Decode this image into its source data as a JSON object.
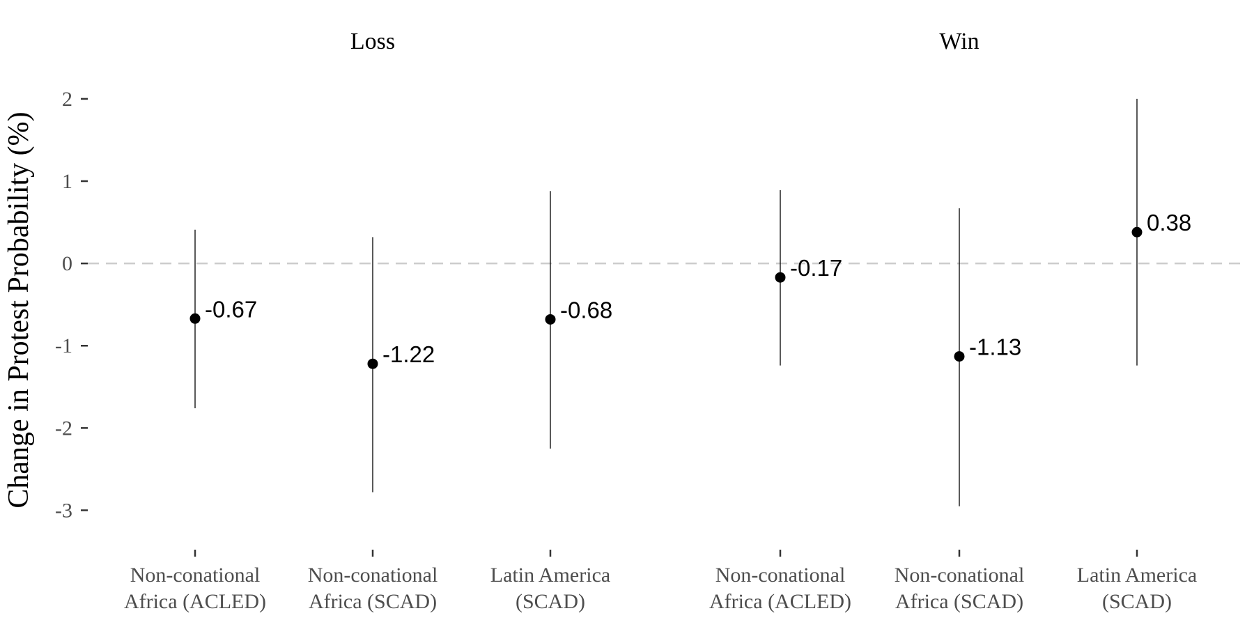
{
  "chart_data": {
    "type": "scatter",
    "ylabel": "Change in Protest Probability (%)",
    "xlabel": "",
    "ylim": [
      -3.25,
      2.05
    ],
    "yticks": [
      2,
      1,
      0,
      -1,
      -2,
      -3
    ],
    "yticks_text": [
      "2",
      "1",
      "0",
      "-1",
      "-2",
      "-3"
    ],
    "reference_line": {
      "y": 0,
      "style": "dashed",
      "color": "#cccccc"
    },
    "grid": false,
    "panels": [
      {
        "title": "Loss",
        "points": [
          {
            "label_line1": "Non-conational",
            "label_line2": "Africa (ACLED)",
            "estimate": -0.67,
            "estimate_text": "-0.67",
            "ci_low": -1.76,
            "ci_high": 0.41
          },
          {
            "label_line1": "Non-conational",
            "label_line2": "Africa (SCAD)",
            "estimate": -1.22,
            "estimate_text": "-1.22",
            "ci_low": -2.78,
            "ci_high": 0.32
          },
          {
            "label_line1": "Latin America",
            "label_line2": "(SCAD)",
            "estimate": -0.68,
            "estimate_text": "-0.68",
            "ci_low": -2.25,
            "ci_high": 0.88
          }
        ]
      },
      {
        "title": "Win",
        "points": [
          {
            "label_line1": "Non-conational",
            "label_line2": "Africa (ACLED)",
            "estimate": -0.17,
            "estimate_text": "-0.17",
            "ci_low": -1.24,
            "ci_high": 0.89
          },
          {
            "label_line1": "Non-conational",
            "label_line2": "Africa (SCAD)",
            "estimate": -1.13,
            "estimate_text": "-1.13",
            "ci_low": -2.95,
            "ci_high": 0.67
          },
          {
            "label_line1": "Latin America",
            "label_line2": "(SCAD)",
            "estimate": 0.38,
            "estimate_text": "0.38",
            "ci_low": -1.24,
            "ci_high": 2.0
          }
        ]
      }
    ]
  }
}
